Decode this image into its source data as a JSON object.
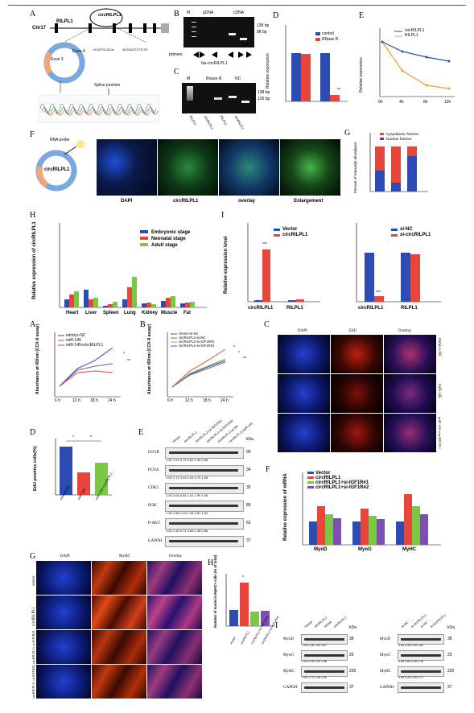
{
  "upper_figure": {
    "panelA": {
      "letter": "A",
      "chromosome": "Chr17",
      "gene": "RILPL1",
      "circ": "circRILPL1",
      "exon3": "Exon 3",
      "exon4": "Exon 4",
      "junction_seq_left": "GCATGCAGA",
      "junction_seq_right": "AGGAGCCTGTG",
      "splice": "Splice junction"
    },
    "panelB": {
      "letter": "B",
      "M": "M",
      "gDNA": "gDNA",
      "cDNA": "cDNA",
      "bp1": "138 bp",
      "bp2": "98 bp",
      "primers": "primers",
      "gene_label": "bis-circRILPL1"
    },
    "panelC": {
      "letter": "C",
      "M": "M",
      "rnaseR": "Rnase R",
      "NC": "NC",
      "bp1": "138 bp",
      "bp2": "126 bp",
      "lane_labels": [
        "RILPL1",
        "circRILPL1",
        "RILPL1",
        "circRILPL1"
      ]
    },
    "panelD": {
      "letter": "D",
      "ylabel": "Relative expression",
      "legend": [
        "control",
        "RNase R"
      ],
      "sig": "**"
    },
    "panelE": {
      "letter": "E",
      "ylabel": "Relative expression",
      "legend": [
        "circRILPL1",
        "RILPL1"
      ],
      "xticks": [
        "0h",
        "4h",
        "8h",
        "12h"
      ]
    },
    "panelF": {
      "letter": "F",
      "probe": "RNA probe",
      "circ": "circRILPL1",
      "images": [
        "DAPI",
        "circRILPL1",
        "overlay",
        "Enlargement"
      ]
    },
    "panelG": {
      "letter": "G",
      "ylabel": "Percent of transcript abundance",
      "legend": [
        "Cytoplasmic fraction",
        "Nuclear fraction"
      ],
      "sig": "*"
    },
    "panelH": {
      "letter": "H",
      "ylabel": "Relative expression of circRILPL1",
      "legend": [
        "Embryonic stage",
        "Neonatal stage",
        "Adult stage"
      ]
    },
    "panelI": {
      "letter": "I",
      "ylabel": "Relative expression level",
      "legendL": [
        "Vector",
        "circRILPL1"
      ],
      "legendR": [
        "si-NC",
        "si-circRILPL1"
      ],
      "sigL": "***",
      "sigR": "***"
    }
  },
  "lower_figure": {
    "panelA": {
      "letter": "A",
      "ylabel": "Absorbance at 450nm (CCK-8 assay)",
      "legend": [
        "mimics-NC",
        "miR-145",
        "miR-145+circRILPL1"
      ],
      "xticks": [
        "6 h",
        "12 h",
        "18 h",
        "24 h"
      ],
      "sig": [
        "*",
        "**"
      ]
    },
    "panelB": {
      "letter": "B",
      "ylabel": "Absorbance at 450nm (CCK-8 assay)",
      "legend": [
        "Vector+si-NC",
        "circRILPL1+si-NC",
        "circRILPL1+si-IGF1R#1",
        "circRILPL1+si-IGF1R#2"
      ],
      "xticks": [
        "6 h",
        "12 h",
        "18 h",
        "24 h"
      ],
      "sig": [
        "*",
        "*",
        "**"
      ]
    },
    "panelC": {
      "letter": "C",
      "cols": [
        "DAPI",
        "EdU",
        "Overlay"
      ],
      "rows": [
        "mimics-NC",
        "miR-145",
        "miR-145+circRILPL1"
      ]
    },
    "panelD": {
      "letter": "D",
      "ylabel": "EdU positive cells(%)",
      "xticks": [
        "mimics-NC",
        "miR-145",
        "miR-145+circRILPL1"
      ],
      "sig": [
        "*",
        "*"
      ]
    },
    "panelE": {
      "letter": "E",
      "kda": "kDa",
      "lanes": [
        "Vector",
        "circRILPL1",
        "circRILPL1+si-IGF1R#1",
        "circRILPL1+si-IGF1R#2",
        "circRILPL1+si-NC",
        "circRILPL1+miR-145"
      ],
      "proteins": [
        {
          "name": "IGF1R",
          "kd": "95",
          "vals": "1.00  1.51  0.75  0.69  1.55  0.58"
        },
        {
          "name": "PCNA",
          "kd": "34",
          "vals": "1.00  1.71  0.93  1.03  1.70  1.06"
        },
        {
          "name": "CDK2",
          "kd": "35",
          "vals": "1.00  2.06  0.84  1.01  1.99  1.06"
        },
        {
          "name": "PI3K",
          "kd": "85",
          "vals": "1.00  1.86  1.29  1.08  1.87  1.02"
        },
        {
          "name": "P-AKT",
          "kd": "62",
          "vals": "1.00  1.30  0.71  0.58  1.35  0.56"
        },
        {
          "name": "GAPDH",
          "kd": "37",
          "vals": ""
        }
      ]
    },
    "panelF": {
      "letter": "F",
      "ylabel": "Relative expression of mRNA",
      "legend": [
        "Vector",
        "circRILPL1",
        "circRILPL1+si-IGF1R#1",
        "circRILPL1+si-IGF1R#2"
      ],
      "xticks": [
        "MyoD",
        "MyoG",
        "MyHC"
      ]
    },
    "panelG": {
      "letter": "G",
      "cols": [
        "DAPI",
        "MyHC",
        "Overlay"
      ],
      "rows": [
        "vector",
        "circRILPL1",
        "circRILPL1+ si-IGF1R#1",
        "circRILPL1+ si-IGF1R#2"
      ]
    },
    "panelH": {
      "letter": "H",
      "ylabel": "Number of nuclei in MyHC+ cells (% of total)",
      "xticks": [
        "vector",
        "circRILPL1",
        "circRILPL1+si-IGF1R#1",
        "circRILPL1+si-IGF1R#2"
      ],
      "sig": "*"
    },
    "panelI": {
      "letter": "I",
      "kda": "kDa",
      "left_lanes": [
        "Vector",
        "circRILPL1",
        "Vector",
        "circRILPL1"
      ],
      "right_lanes": [
        "si-NC",
        "si-circRILPL1",
        "si-NC",
        "si-circRILPL1"
      ],
      "left": [
        {
          "name": "MyoD",
          "kd": "38",
          "vals": "1.00  2.36  1.00  1.67"
        },
        {
          "name": "MyoG",
          "kd": "25",
          "vals": "1.00  2.25  1.00  1.86"
        },
        {
          "name": "MyHC",
          "kd": "220",
          "vals": "1.00  1.72  1.00  1.59"
        },
        {
          "name": "GAPDH",
          "kd": "37",
          "vals": ""
        }
      ],
      "right": [
        {
          "name": "MyoD",
          "kd": "38",
          "vals": "1.00  0.48  1.00  0.60"
        },
        {
          "name": "MyoG",
          "kd": "25",
          "vals": "1.00  0.83  1.00  0.76"
        },
        {
          "name": "MyHC",
          "kd": "220",
          "vals": "1.00  0.45  1.00  0.71"
        },
        {
          "name": "GAPDH",
          "kd": "37",
          "vals": ""
        }
      ]
    }
  },
  "colors": {
    "blue": "#2c4bb5",
    "red": "#e8463a",
    "green": "#7ac943",
    "purple": "#7e4fb3",
    "orange": "#f0a030",
    "steel": "#4a6fb5"
  }
}
